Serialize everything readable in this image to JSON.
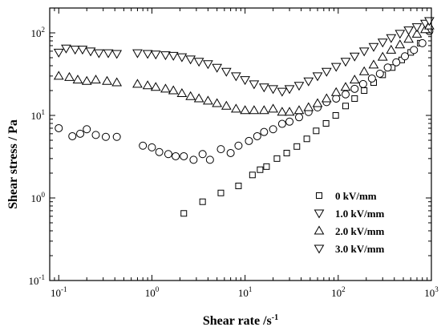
{
  "chart_data": {
    "type": "scatter",
    "xscale": "log",
    "yscale": "log",
    "xlabel": "Shear rate /s",
    "xlabel_sup": "-1",
    "ylabel": "Shear stress / Pa",
    "xlim": [
      0.08,
      1000
    ],
    "ylim": [
      0.1,
      200
    ],
    "grid": false,
    "legend_position": "lower-right",
    "x_ticks": [
      {
        "value": 0.1,
        "base": "10",
        "exp": "-1"
      },
      {
        "value": 1,
        "base": "10",
        "exp": "0"
      },
      {
        "value": 10,
        "base": "10",
        "exp": "1"
      },
      {
        "value": 100,
        "base": "10",
        "exp": "2"
      },
      {
        "value": 1000,
        "base": "10",
        "exp": "3"
      }
    ],
    "y_ticks": [
      {
        "value": 0.1,
        "base": "10",
        "exp": "-1"
      },
      {
        "value": 1,
        "base": "10",
        "exp": "0"
      },
      {
        "value": 10,
        "base": "10",
        "exp": "1"
      },
      {
        "value": 100,
        "base": "10",
        "exp": "2"
      }
    ],
    "series": [
      {
        "name": "0   kV/mm",
        "marker": "square",
        "points": [
          [
            2.2,
            0.65
          ],
          [
            3.5,
            0.9
          ],
          [
            5.5,
            1.15
          ],
          [
            8.5,
            1.4
          ],
          [
            12,
            1.9
          ],
          [
            14.5,
            2.2
          ],
          [
            17,
            2.4
          ],
          [
            22,
            3.0
          ],
          [
            28,
            3.5
          ],
          [
            36,
            4.2
          ],
          [
            46,
            5.2
          ],
          [
            58,
            6.5
          ],
          [
            74,
            8.0
          ],
          [
            94,
            10
          ],
          [
            120,
            13
          ],
          [
            150,
            16
          ],
          [
            190,
            20
          ],
          [
            240,
            25
          ],
          [
            300,
            31
          ],
          [
            380,
            38
          ],
          [
            480,
            47
          ],
          [
            600,
            58
          ],
          [
            760,
            75
          ],
          [
            950,
            110
          ]
        ]
      },
      {
        "name": "1.0 kV/mm",
        "marker": "diamond",
        "points": [
          [
            0.1,
            7
          ],
          [
            0.14,
            5.6
          ],
          [
            0.17,
            6.0
          ],
          [
            0.2,
            6.8
          ],
          [
            0.25,
            5.8
          ],
          [
            0.32,
            5.5
          ],
          [
            0.42,
            5.5
          ],
          [
            0.8,
            4.3
          ],
          [
            1.0,
            4.1
          ],
          [
            1.2,
            3.6
          ],
          [
            1.5,
            3.4
          ],
          [
            1.8,
            3.2
          ],
          [
            2.2,
            3.2
          ],
          [
            2.8,
            2.9
          ],
          [
            3.5,
            3.4
          ],
          [
            4.2,
            2.9
          ],
          [
            5.5,
            3.9
          ],
          [
            7,
            3.5
          ],
          [
            8.5,
            4.3
          ],
          [
            11,
            4.9
          ],
          [
            13.5,
            5.6
          ],
          [
            16,
            6.3
          ],
          [
            20,
            6.8
          ],
          [
            25,
            7.9
          ],
          [
            30,
            8.4
          ],
          [
            38,
            9.5
          ],
          [
            48,
            11
          ],
          [
            60,
            12.5
          ],
          [
            75,
            14.5
          ],
          [
            95,
            16
          ],
          [
            120,
            18
          ],
          [
            150,
            21
          ],
          [
            185,
            24
          ],
          [
            230,
            28
          ],
          [
            280,
            32
          ],
          [
            340,
            38
          ],
          [
            420,
            44
          ],
          [
            520,
            52
          ],
          [
            650,
            62
          ],
          [
            800,
            75
          ],
          [
            950,
            105
          ]
        ]
      },
      {
        "name": "2.0 kV/mm",
        "marker": "triangle-up",
        "points": [
          [
            0.1,
            30
          ],
          [
            0.13,
            29
          ],
          [
            0.16,
            27
          ],
          [
            0.2,
            26
          ],
          [
            0.25,
            27
          ],
          [
            0.33,
            26
          ],
          [
            0.42,
            25
          ],
          [
            0.7,
            24
          ],
          [
            0.9,
            23
          ],
          [
            1.1,
            22
          ],
          [
            1.4,
            21
          ],
          [
            1.7,
            20
          ],
          [
            2.1,
            18.5
          ],
          [
            2.6,
            17
          ],
          [
            3.2,
            16
          ],
          [
            4,
            15
          ],
          [
            5,
            14
          ],
          [
            6.3,
            13
          ],
          [
            8,
            12
          ],
          [
            10,
            11.5
          ],
          [
            12.5,
            11.5
          ],
          [
            16,
            11.5
          ],
          [
            20,
            12
          ],
          [
            25,
            11
          ],
          [
            30,
            11
          ],
          [
            38,
            11.5
          ],
          [
            48,
            12.5
          ],
          [
            60,
            14
          ],
          [
            75,
            16
          ],
          [
            95,
            19
          ],
          [
            120,
            22
          ],
          [
            150,
            27
          ],
          [
            190,
            34
          ],
          [
            240,
            41
          ],
          [
            300,
            51
          ],
          [
            370,
            62
          ],
          [
            460,
            72
          ],
          [
            570,
            84
          ],
          [
            700,
            97
          ],
          [
            860,
            110
          ],
          [
            950,
            122
          ]
        ]
      },
      {
        "name": "3.0 kV/mm",
        "marker": "triangle-down",
        "points": [
          [
            0.1,
            58
          ],
          [
            0.12,
            65
          ],
          [
            0.15,
            63
          ],
          [
            0.18,
            63
          ],
          [
            0.22,
            60
          ],
          [
            0.27,
            57
          ],
          [
            0.34,
            57
          ],
          [
            0.42,
            56
          ],
          [
            0.7,
            57
          ],
          [
            0.9,
            56
          ],
          [
            1.1,
            55
          ],
          [
            1.4,
            54
          ],
          [
            1.7,
            53
          ],
          [
            2.1,
            51
          ],
          [
            2.6,
            48
          ],
          [
            3.2,
            45
          ],
          [
            4,
            42
          ],
          [
            5,
            38
          ],
          [
            6.3,
            34
          ],
          [
            8,
            30
          ],
          [
            10,
            27
          ],
          [
            12.5,
            24
          ],
          [
            16,
            22
          ],
          [
            20,
            21
          ],
          [
            25,
            19.5
          ],
          [
            30,
            21
          ],
          [
            38,
            23
          ],
          [
            48,
            26
          ],
          [
            60,
            30
          ],
          [
            75,
            34
          ],
          [
            95,
            39
          ],
          [
            120,
            45
          ],
          [
            150,
            52
          ],
          [
            190,
            60
          ],
          [
            240,
            68
          ],
          [
            300,
            77
          ],
          [
            370,
            87
          ],
          [
            460,
            98
          ],
          [
            570,
            108
          ],
          [
            700,
            118
          ],
          [
            860,
            130
          ],
          [
            950,
            140
          ]
        ]
      }
    ]
  }
}
